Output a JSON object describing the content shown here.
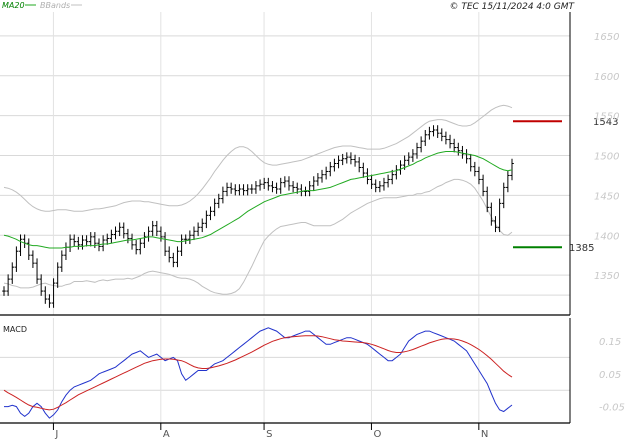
{
  "chart_data": [
    {
      "type": "line",
      "panel": "price",
      "legend": [
        "MA20",
        "BBands"
      ],
      "copyright": "© TEC 15/11/2024 4:0 GMT",
      "ylim": [
        1300,
        1680
      ],
      "yticks": [
        "1650",
        "1600",
        "1550",
        "1500",
        "1450",
        "1400",
        "1350"
      ],
      "ytick_values": [
        1650,
        1600,
        1550,
        1500,
        1450,
        1400,
        1350
      ],
      "xticks": [
        "J",
        "A",
        "S",
        "O",
        "N"
      ],
      "resistance": {
        "value": 1543,
        "label": "1543",
        "color": "#c00000"
      },
      "support": {
        "value": 1385,
        "label": "1385",
        "color": "#008000"
      },
      "bars_close": [
        1330,
        1345,
        1360,
        1380,
        1395,
        1390,
        1375,
        1365,
        1345,
        1330,
        1320,
        1315,
        1340,
        1360,
        1375,
        1385,
        1395,
        1392,
        1388,
        1394,
        1392,
        1398,
        1390,
        1386,
        1394,
        1396,
        1401,
        1405,
        1410,
        1402,
        1396,
        1388,
        1382,
        1390,
        1398,
        1405,
        1412,
        1405,
        1398,
        1380,
        1372,
        1366,
        1380,
        1395,
        1395,
        1400,
        1405,
        1410,
        1415,
        1425,
        1430,
        1440,
        1446,
        1455,
        1460,
        1458,
        1456,
        1458,
        1456,
        1458,
        1458,
        1462,
        1464,
        1466,
        1462,
        1460,
        1458,
        1466,
        1468,
        1462,
        1460,
        1458,
        1455,
        1455,
        1462,
        1468,
        1472,
        1476,
        1480,
        1486,
        1490,
        1494,
        1496,
        1498,
        1495,
        1492,
        1485,
        1478,
        1470,
        1464,
        1460,
        1462,
        1466,
        1470,
        1476,
        1482,
        1488,
        1494,
        1498,
        1502,
        1510,
        1518,
        1526,
        1530,
        1532,
        1528,
        1524,
        1520,
        1515,
        1510,
        1506,
        1502,
        1496,
        1486,
        1480,
        1470,
        1455,
        1435,
        1418,
        1410,
        1440,
        1460,
        1475,
        1490
      ],
      "ma20": [
        1400,
        1399,
        1397,
        1395,
        1392,
        1390,
        1388,
        1387,
        1387,
        1386,
        1385,
        1384,
        1384,
        1384,
        1384,
        1385,
        1385,
        1386,
        1386,
        1386,
        1387,
        1387,
        1387,
        1388,
        1389,
        1389,
        1390,
        1391,
        1392,
        1393,
        1394,
        1394,
        1395,
        1396,
        1397,
        1398,
        1398,
        1397,
        1396,
        1395,
        1394,
        1393,
        1392,
        1392,
        1393,
        1394,
        1395,
        1396,
        1397,
        1399,
        1401,
        1404,
        1407,
        1410,
        1413,
        1416,
        1419,
        1422,
        1426,
        1430,
        1433,
        1436,
        1439,
        1442,
        1444,
        1446,
        1448,
        1450,
        1451,
        1452,
        1453,
        1454,
        1455,
        1456,
        1456,
        1456,
        1457,
        1458,
        1459,
        1460,
        1462,
        1464,
        1466,
        1468,
        1470,
        1471,
        1472,
        1473,
        1474,
        1475,
        1476,
        1477,
        1478,
        1479,
        1480,
        1481,
        1483,
        1485,
        1487,
        1489,
        1492,
        1494,
        1497,
        1499,
        1501,
        1503,
        1504,
        1505,
        1505,
        1505,
        1504,
        1503,
        1502,
        1501,
        1500,
        1498,
        1496,
        1493,
        1490,
        1487,
        1484,
        1482,
        1481,
        1482
      ],
      "bb_upper": [
        1460,
        1459,
        1457,
        1454,
        1450,
        1445,
        1440,
        1436,
        1433,
        1431,
        1430,
        1430,
        1431,
        1432,
        1432,
        1432,
        1431,
        1430,
        1430,
        1430,
        1431,
        1432,
        1433,
        1433,
        1434,
        1435,
        1436,
        1437,
        1439,
        1441,
        1442,
        1443,
        1443,
        1443,
        1442,
        1442,
        1441,
        1440,
        1439,
        1438,
        1437,
        1437,
        1437,
        1438,
        1440,
        1443,
        1447,
        1452,
        1458,
        1465,
        1472,
        1480,
        1487,
        1494,
        1500,
        1505,
        1509,
        1511,
        1511,
        1509,
        1505,
        1500,
        1495,
        1491,
        1489,
        1488,
        1488,
        1489,
        1490,
        1491,
        1492,
        1493,
        1494,
        1496,
        1498,
        1500,
        1502,
        1504,
        1506,
        1508,
        1510,
        1511,
        1512,
        1512,
        1512,
        1511,
        1510,
        1509,
        1508,
        1508,
        1508,
        1508,
        1509,
        1511,
        1513,
        1515,
        1518,
        1521,
        1524,
        1528,
        1532,
        1536,
        1540,
        1543,
        1544,
        1545,
        1545,
        1544,
        1542,
        1540,
        1538,
        1537,
        1537,
        1538,
        1541,
        1545,
        1549,
        1553,
        1557,
        1560,
        1562,
        1563,
        1562,
        1560
      ],
      "bb_lower": [
        1340,
        1339,
        1337,
        1336,
        1334,
        1334,
        1334,
        1335,
        1337,
        1339,
        1340,
        1338,
        1337,
        1336,
        1336,
        1338,
        1339,
        1342,
        1342,
        1342,
        1343,
        1342,
        1341,
        1343,
        1344,
        1343,
        1344,
        1345,
        1345,
        1345,
        1346,
        1345,
        1347,
        1349,
        1352,
        1354,
        1355,
        1354,
        1353,
        1352,
        1351,
        1349,
        1347,
        1346,
        1346,
        1345,
        1343,
        1340,
        1336,
        1333,
        1330,
        1328,
        1327,
        1326,
        1326,
        1327,
        1329,
        1333,
        1341,
        1351,
        1361,
        1372,
        1383,
        1393,
        1399,
        1404,
        1408,
        1411,
        1412,
        1413,
        1414,
        1415,
        1416,
        1416,
        1414,
        1412,
        1412,
        1412,
        1412,
        1412,
        1414,
        1417,
        1420,
        1424,
        1428,
        1431,
        1434,
        1437,
        1440,
        1442,
        1444,
        1446,
        1447,
        1447,
        1447,
        1447,
        1448,
        1449,
        1450,
        1450,
        1452,
        1452,
        1454,
        1455,
        1458,
        1461,
        1463,
        1466,
        1468,
        1470,
        1470,
        1469,
        1467,
        1464,
        1459,
        1451,
        1443,
        1433,
        1423,
        1414,
        1406,
        1401,
        1400,
        1404
      ]
    },
    {
      "type": "line",
      "panel": "macd",
      "title": "MACD",
      "ylim": [
        -0.1,
        0.22
      ],
      "yticks": [
        "0.15",
        "0.05",
        "-0.05"
      ],
      "ytick_values": [
        0.15,
        0.05,
        -0.05
      ],
      "series": [
        {
          "values": [
            -0.05,
            -0.05,
            -0.046,
            -0.05,
            -0.07,
            -0.08,
            -0.07,
            -0.05,
            -0.04,
            -0.05,
            -0.07,
            -0.085,
            -0.075,
            -0.06,
            -0.035,
            -0.015,
            0,
            0.01,
            0.015,
            0.02,
            0.025,
            0.03,
            0.04,
            0.05,
            0.055,
            0.06,
            0.065,
            0.07,
            0.08,
            0.09,
            0.1,
            0.11,
            0.115,
            0.12,
            0.11,
            0.1,
            0.105,
            0.11,
            0.1,
            0.09,
            0.095,
            0.1,
            0.09,
            0.05,
            0.03,
            0.04,
            0.05,
            0.06,
            0.06,
            0.06,
            0.07,
            0.08,
            0.085,
            0.09,
            0.1,
            0.11,
            0.12,
            0.13,
            0.14,
            0.15,
            0.16,
            0.17,
            0.18,
            0.185,
            0.19,
            0.185,
            0.18,
            0.17,
            0.16,
            0.16,
            0.165,
            0.17,
            0.175,
            0.18,
            0.18,
            0.17,
            0.16,
            0.15,
            0.14,
            0.14,
            0.145,
            0.15,
            0.155,
            0.16,
            0.16,
            0.155,
            0.15,
            0.145,
            0.14,
            0.13,
            0.12,
            0.11,
            0.1,
            0.09,
            0.09,
            0.1,
            0.11,
            0.13,
            0.15,
            0.16,
            0.17,
            0.175,
            0.18,
            0.18,
            0.175,
            0.17,
            0.165,
            0.16,
            0.155,
            0.15,
            0.14,
            0.13,
            0.12,
            0.1,
            0.08,
            0.06,
            0.04,
            0.02,
            -0.01,
            -0.04,
            -0.06,
            -0.065,
            -0.055,
            -0.045
          ],
          "color": "#2233cc"
        },
        {
          "values": [
            0,
            -0.008,
            -0.015,
            -0.022,
            -0.03,
            -0.038,
            -0.045,
            -0.05,
            -0.052,
            -0.055,
            -0.058,
            -0.06,
            -0.058,
            -0.052,
            -0.045,
            -0.038,
            -0.03,
            -0.022,
            -0.014,
            -0.008,
            -0.002,
            0.004,
            0.01,
            0.016,
            0.022,
            0.028,
            0.034,
            0.04,
            0.046,
            0.052,
            0.058,
            0.064,
            0.07,
            0.076,
            0.082,
            0.086,
            0.09,
            0.092,
            0.094,
            0.095,
            0.095,
            0.094,
            0.092,
            0.09,
            0.085,
            0.078,
            0.072,
            0.068,
            0.066,
            0.066,
            0.068,
            0.071,
            0.074,
            0.078,
            0.082,
            0.087,
            0.092,
            0.098,
            0.104,
            0.11,
            0.116,
            0.123,
            0.13,
            0.137,
            0.143,
            0.149,
            0.153,
            0.157,
            0.16,
            0.162,
            0.163,
            0.164,
            0.165,
            0.166,
            0.166,
            0.166,
            0.165,
            0.163,
            0.16,
            0.157,
            0.154,
            0.152,
            0.15,
            0.149,
            0.148,
            0.147,
            0.146,
            0.145,
            0.143,
            0.14,
            0.136,
            0.131,
            0.126,
            0.121,
            0.117,
            0.115,
            0.115,
            0.117,
            0.12,
            0.124,
            0.129,
            0.134,
            0.139,
            0.144,
            0.148,
            0.152,
            0.155,
            0.157,
            0.157,
            0.156,
            0.154,
            0.15,
            0.145,
            0.139,
            0.132,
            0.124,
            0.115,
            0.105,
            0.094,
            0.082,
            0.07,
            0.058,
            0.048,
            0.04
          ],
          "color": "#cc2222"
        }
      ]
    }
  ]
}
